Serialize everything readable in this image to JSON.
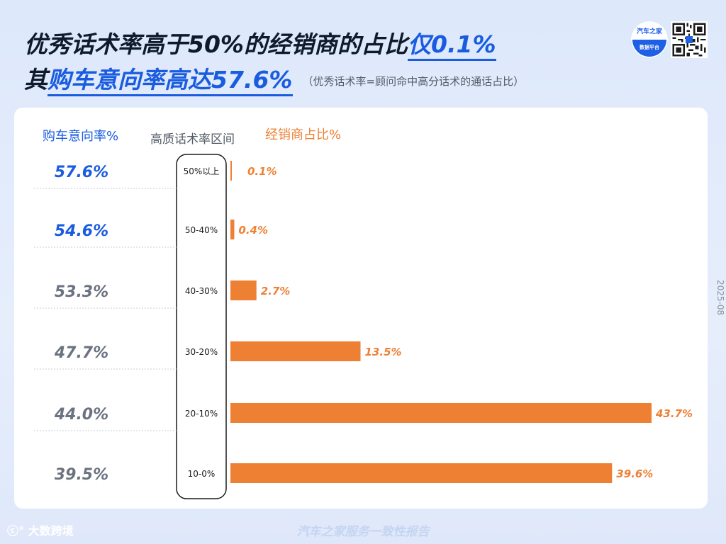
{
  "header": {
    "line1_prefix": "优秀话术率高于50%的经销商的占比",
    "line1_highlight": "仅0.1%",
    "line2_prefix": "其",
    "line2_highlight": "购车意向率高达57.6%",
    "note": "（优秀话术率=顾问命中高分话术的通话占比）"
  },
  "logo": {
    "top_text": "汽车之家",
    "bottom_text": "数据平台"
  },
  "side_date": "2025-08",
  "footer": {
    "left_brand": "大数跨境",
    "center_text": "汽车之家服务一致性报告"
  },
  "colors": {
    "blue": "#1a5ce0",
    "gray": "#6b7280",
    "orange": "#ee8034"
  },
  "chart_data": {
    "type": "bar",
    "orientation": "horizontal",
    "left_column_label": "购车意向率%",
    "category_label": "高质话术率区间",
    "series_label": "经销商占比%",
    "categories": [
      "50%以上",
      "50-40%",
      "40-30%",
      "30-20%",
      "20-10%",
      "10-0%"
    ],
    "purchase_intent": [
      57.6,
      54.6,
      53.3,
      47.7,
      44.0,
      39.5
    ],
    "purchase_intent_labels": [
      "57.6%",
      "54.6%",
      "53.3%",
      "47.7%",
      "44.0%",
      "39.5%"
    ],
    "dealer_share": [
      0.1,
      0.4,
      2.7,
      13.5,
      43.7,
      39.6
    ],
    "dealer_share_labels": [
      "0.1%",
      "0.4%",
      "2.7%",
      "13.5%",
      "43.7%",
      "39.6%"
    ],
    "highlighted_rows": [
      0,
      1
    ],
    "xlim": [
      0,
      43.7
    ]
  }
}
